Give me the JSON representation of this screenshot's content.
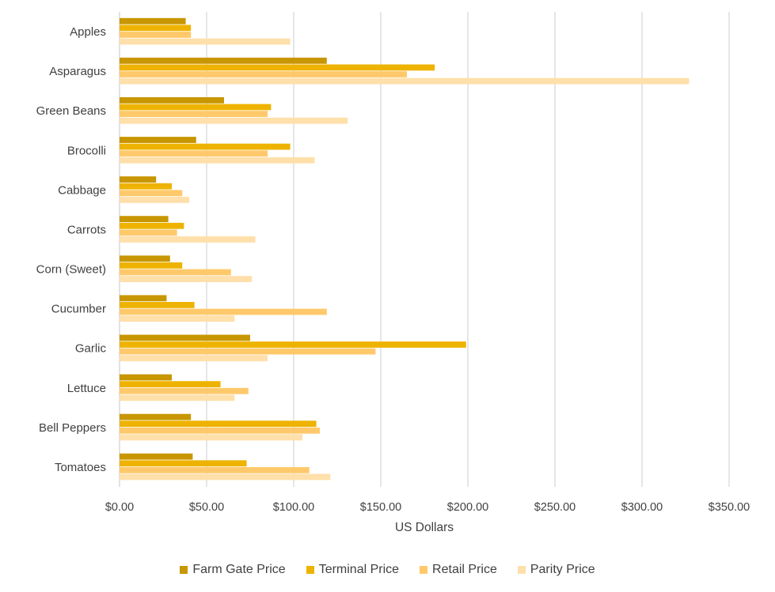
{
  "chart_data": {
    "type": "bar",
    "orientation": "horizontal",
    "title": "",
    "xlabel": "US Dollars",
    "ylabel": "",
    "xlim": [
      0,
      350
    ],
    "x_ticks": [
      0,
      50,
      100,
      150,
      200,
      250,
      300,
      350
    ],
    "x_tick_labels": [
      "$0.00",
      "$50.00",
      "$100.00",
      "$150.00",
      "$200.00",
      "$250.00",
      "$300.00",
      "$350.00"
    ],
    "grid": "vertical",
    "legend_position": "bottom",
    "categories": [
      "Apples",
      "Asparagus",
      "Green Beans",
      "Brocolli",
      "Cabbage",
      "Carrots",
      "Corn (Sweet)",
      "Cucumber",
      "Garlic",
      "Lettuce",
      "Bell Peppers",
      "Tomatoes"
    ],
    "series": [
      {
        "name": "Farm Gate Price",
        "color": "#c89600",
        "values": [
          38,
          119,
          60,
          44,
          21,
          28,
          29,
          27,
          75,
          30,
          41,
          42
        ]
      },
      {
        "name": "Terminal Price",
        "color": "#eeb300",
        "values": [
          41,
          181,
          87,
          98,
          30,
          37,
          36,
          43,
          199,
          58,
          113,
          73
        ]
      },
      {
        "name": "Retail Price",
        "color": "#ffc96b",
        "values": [
          41,
          165,
          85,
          85,
          36,
          33,
          64,
          119,
          147,
          74,
          115,
          109
        ]
      },
      {
        "name": "Parity Price",
        "color": "#ffdfaa",
        "values": [
          98,
          327,
          131,
          112,
          40,
          78,
          76,
          66,
          85,
          66,
          105,
          121
        ]
      }
    ]
  }
}
